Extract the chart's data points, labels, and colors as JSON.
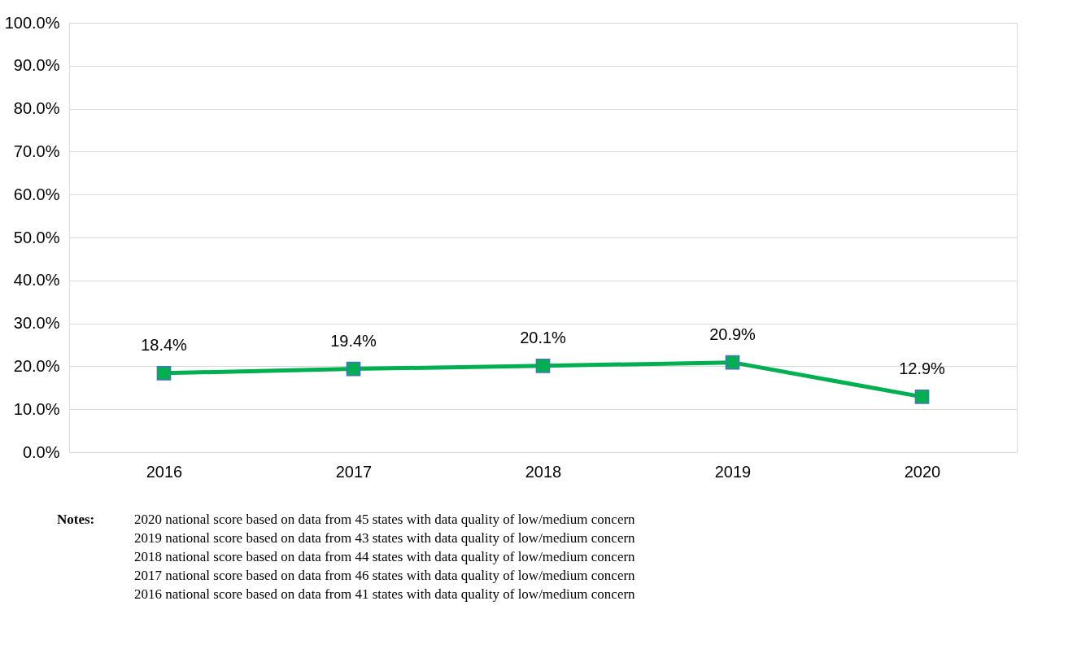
{
  "chart_data": {
    "type": "line",
    "categories": [
      "2016",
      "2017",
      "2018",
      "2019",
      "2020"
    ],
    "series": [
      {
        "color": "#00b050",
        "values": [
          18.4,
          19.4,
          20.1,
          20.9,
          12.9
        ]
      }
    ],
    "value_labels": [
      "18.4%",
      "19.4%",
      "20.1%",
      "20.9%",
      "12.9%"
    ],
    "ylim": [
      0,
      100
    ],
    "yticks": [
      {
        "value": 0,
        "label": "0.0%"
      },
      {
        "value": 10,
        "label": "10.0%"
      },
      {
        "value": 20,
        "label": "20.0%"
      },
      {
        "value": 30,
        "label": "30.0%"
      },
      {
        "value": 40,
        "label": "40.0%"
      },
      {
        "value": 50,
        "label": "50.0%"
      },
      {
        "value": 60,
        "label": "60.0%"
      },
      {
        "value": 70,
        "label": "70.0%"
      },
      {
        "value": 80,
        "label": "80.0%"
      },
      {
        "value": 90,
        "label": "90.0%"
      },
      {
        "value": 100,
        "label": "100.0%"
      }
    ],
    "grid": "y",
    "marker": "square",
    "line_style": "solid",
    "annotations": [
      "Notes:",
      "2020 national score based on data from 45 states with data quality of low/medium concern",
      "2019 national score based on data from 43 states with data quality of low/medium concern",
      "2018 national score based on data from 44 states with data quality of low/medium concern",
      "2017 national score based on data from 46 states with data quality of low/medium concern",
      "2016 national score based on data from 41 states with data quality of low/medium concern"
    ]
  }
}
